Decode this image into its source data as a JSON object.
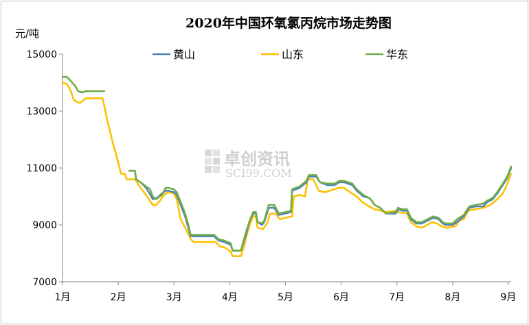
{
  "chart_data": {
    "type": "line",
    "title": "2020年中国环氧氯丙烷市场走势图",
    "ylabel": "元/吨",
    "xlabel": "",
    "ylim": [
      7000,
      15000
    ],
    "yticks": [
      7000,
      9000,
      11000,
      13000,
      15000
    ],
    "xlim": [
      1,
      9.05
    ],
    "xticks": [
      "1月",
      "2月",
      "3月",
      "4月",
      "5月",
      "6月",
      "7月",
      "8月",
      "9月"
    ],
    "legend_position": "top",
    "watermark": {
      "cn": "卓创资讯",
      "en": "SCI99.COM"
    },
    "colors": {
      "黄山": "#4f81bd",
      "山东": "#ffc000",
      "华东": "#70ad47"
    },
    "series": [
      {
        "name": "黄山",
        "segments": [
          [
            [
              2.2,
              10900
            ],
            [
              2.3,
              10900
            ],
            [
              2.32,
              10600
            ],
            [
              2.4,
              10500
            ],
            [
              2.5,
              10300
            ],
            [
              2.58,
              10050
            ],
            [
              2.62,
              9900
            ],
            [
              2.7,
              9950
            ],
            [
              2.78,
              10100
            ],
            [
              2.85,
              10200
            ],
            [
              2.9,
              10200
            ],
            [
              3.0,
              10150
            ],
            [
              3.05,
              10050
            ],
            [
              3.12,
              9700
            ],
            [
              3.2,
              9300
            ],
            [
              3.25,
              8950
            ],
            [
              3.3,
              8600
            ],
            [
              3.72,
              8600
            ],
            [
              3.8,
              8450
            ],
            [
              3.9,
              8400
            ],
            [
              4.02,
              8300
            ],
            [
              4.05,
              8100
            ],
            [
              4.2,
              8100
            ],
            [
              4.25,
              8400
            ],
            [
              4.3,
              8700
            ],
            [
              4.35,
              9100
            ],
            [
              4.42,
              9400
            ],
            [
              4.47,
              9400
            ],
            [
              4.5,
              9100
            ],
            [
              4.58,
              9000
            ],
            [
              4.62,
              9100
            ],
            [
              4.7,
              9600
            ],
            [
              4.8,
              9600
            ],
            [
              4.88,
              9350
            ],
            [
              5.0,
              9400
            ],
            [
              5.1,
              9450
            ],
            [
              5.12,
              10200
            ],
            [
              5.25,
              10300
            ],
            [
              5.38,
              10500
            ],
            [
              5.42,
              10700
            ],
            [
              5.55,
              10700
            ],
            [
              5.62,
              10500
            ],
            [
              5.75,
              10400
            ],
            [
              5.88,
              10400
            ],
            [
              5.97,
              10500
            ],
            [
              6.05,
              10500
            ],
            [
              6.2,
              10400
            ],
            [
              6.28,
              10200
            ],
            [
              6.4,
              10000
            ],
            [
              6.5,
              9950
            ],
            [
              6.55,
              9850
            ],
            [
              6.6,
              9700
            ],
            [
              6.7,
              9600
            ],
            [
              6.8,
              9400
            ],
            [
              6.98,
              9400
            ],
            [
              7.02,
              9550
            ],
            [
              7.1,
              9500
            ],
            [
              7.18,
              9500
            ],
            [
              7.25,
              9200
            ],
            [
              7.35,
              9050
            ],
            [
              7.45,
              9050
            ],
            [
              7.55,
              9150
            ],
            [
              7.65,
              9250
            ],
            [
              7.75,
              9200
            ],
            [
              7.82,
              9050
            ],
            [
              7.88,
              9000
            ],
            [
              8.0,
              9000
            ],
            [
              8.08,
              9100
            ],
            [
              8.2,
              9300
            ],
            [
              8.3,
              9600
            ],
            [
              8.42,
              9650
            ],
            [
              8.55,
              9650
            ],
            [
              8.62,
              9800
            ],
            [
              8.72,
              9900
            ],
            [
              8.8,
              10100
            ],
            [
              8.9,
              10400
            ],
            [
              8.98,
              10650
            ],
            [
              9.05,
              11000
            ]
          ]
        ]
      },
      {
        "name": "山东",
        "segments": [
          [
            [
              1.0,
              14000
            ],
            [
              1.08,
              13950
            ],
            [
              1.15,
              13700
            ],
            [
              1.2,
              13400
            ],
            [
              1.28,
              13300
            ],
            [
              1.32,
              13300
            ],
            [
              1.42,
              13450
            ],
            [
              1.72,
              13450
            ],
            [
              1.8,
              12700
            ],
            [
              1.9,
              11900
            ],
            [
              2.0,
              11200
            ],
            [
              2.05,
              10800
            ],
            [
              2.12,
              10800
            ],
            [
              2.15,
              10600
            ],
            [
              2.3,
              10600
            ],
            [
              2.4,
              10300
            ],
            [
              2.5,
              10050
            ],
            [
              2.55,
              9900
            ],
            [
              2.62,
              9700
            ],
            [
              2.68,
              9700
            ],
            [
              2.75,
              9850
            ],
            [
              2.82,
              10050
            ],
            [
              2.9,
              10150
            ],
            [
              3.0,
              10100
            ],
            [
              3.05,
              9900
            ],
            [
              3.12,
              9200
            ],
            [
              3.2,
              8900
            ],
            [
              3.3,
              8500
            ],
            [
              3.35,
              8400
            ],
            [
              3.75,
              8400
            ],
            [
              3.82,
              8250
            ],
            [
              3.92,
              8200
            ],
            [
              4.02,
              8050
            ],
            [
              4.05,
              7900
            ],
            [
              4.2,
              7900
            ],
            [
              4.25,
              8200
            ],
            [
              4.3,
              8600
            ],
            [
              4.35,
              8950
            ],
            [
              4.42,
              9300
            ],
            [
              4.47,
              9300
            ],
            [
              4.5,
              8900
            ],
            [
              4.6,
              8850
            ],
            [
              4.68,
              9100
            ],
            [
              4.72,
              9400
            ],
            [
              4.82,
              9400
            ],
            [
              4.9,
              9200
            ],
            [
              5.0,
              9250
            ],
            [
              5.12,
              9300
            ],
            [
              5.15,
              10000
            ],
            [
              5.25,
              10050
            ],
            [
              5.35,
              10000
            ],
            [
              5.4,
              10600
            ],
            [
              5.5,
              10600
            ],
            [
              5.6,
              10200
            ],
            [
              5.7,
              10150
            ],
            [
              5.8,
              10200
            ],
            [
              5.95,
              10300
            ],
            [
              6.05,
              10300
            ],
            [
              6.2,
              10100
            ],
            [
              6.28,
              10000
            ],
            [
              6.38,
              9800
            ],
            [
              6.5,
              9650
            ],
            [
              6.6,
              9550
            ],
            [
              6.72,
              9500
            ],
            [
              6.8,
              9450
            ],
            [
              6.98,
              9500
            ],
            [
              7.02,
              9450
            ],
            [
              7.18,
              9400
            ],
            [
              7.25,
              9100
            ],
            [
              7.35,
              8950
            ],
            [
              7.45,
              8900
            ],
            [
              7.55,
              9000
            ],
            [
              7.62,
              9100
            ],
            [
              7.72,
              9050
            ],
            [
              7.8,
              8950
            ],
            [
              7.9,
              8900
            ],
            [
              8.05,
              8950
            ],
            [
              8.12,
              9150
            ],
            [
              8.2,
              9200
            ],
            [
              8.28,
              9500
            ],
            [
              8.4,
              9550
            ],
            [
              8.55,
              9600
            ],
            [
              8.68,
              9700
            ],
            [
              8.8,
              9900
            ],
            [
              8.9,
              10100
            ],
            [
              8.97,
              10400
            ],
            [
              9.05,
              10800
            ]
          ]
        ]
      },
      {
        "name": "华东",
        "segments": [
          [
            [
              1.0,
              14200
            ],
            [
              1.08,
              14200
            ],
            [
              1.15,
              14050
            ],
            [
              1.22,
              13900
            ],
            [
              1.28,
              13700
            ],
            [
              1.35,
              13650
            ],
            [
              1.42,
              13700
            ],
            [
              1.75,
              13700
            ]
          ],
          [
            [
              2.2,
              10900
            ],
            [
              2.3,
              10900
            ],
            [
              2.32,
              10600
            ],
            [
              2.4,
              10500
            ],
            [
              2.5,
              10350
            ],
            [
              2.57,
              10250
            ],
            [
              2.62,
              10000
            ],
            [
              2.68,
              9900
            ],
            [
              2.78,
              10050
            ],
            [
              2.85,
              10300
            ],
            [
              2.9,
              10300
            ],
            [
              3.0,
              10250
            ],
            [
              3.05,
              10150
            ],
            [
              3.12,
              9800
            ],
            [
              3.2,
              9400
            ],
            [
              3.25,
              9050
            ],
            [
              3.3,
              8650
            ],
            [
              3.72,
              8650
            ],
            [
              3.8,
              8500
            ],
            [
              3.9,
              8450
            ],
            [
              4.02,
              8350
            ],
            [
              4.05,
              8100
            ],
            [
              4.2,
              8100
            ],
            [
              4.25,
              8450
            ],
            [
              4.3,
              8800
            ],
            [
              4.35,
              9100
            ],
            [
              4.42,
              9450
            ],
            [
              4.47,
              9450
            ],
            [
              4.5,
              9100
            ],
            [
              4.58,
              9050
            ],
            [
              4.62,
              9150
            ],
            [
              4.7,
              9700
            ],
            [
              4.8,
              9700
            ],
            [
              4.88,
              9400
            ],
            [
              5.0,
              9450
            ],
            [
              5.1,
              9500
            ],
            [
              5.12,
              10250
            ],
            [
              5.25,
              10350
            ],
            [
              5.38,
              10550
            ],
            [
              5.42,
              10750
            ],
            [
              5.55,
              10750
            ],
            [
              5.62,
              10500
            ],
            [
              5.75,
              10450
            ],
            [
              5.88,
              10450
            ],
            [
              5.97,
              10550
            ],
            [
              6.05,
              10550
            ],
            [
              6.2,
              10450
            ],
            [
              6.28,
              10250
            ],
            [
              6.4,
              10050
            ],
            [
              6.5,
              9950
            ],
            [
              6.55,
              9850
            ],
            [
              6.6,
              9700
            ],
            [
              6.7,
              9600
            ],
            [
              6.8,
              9400
            ],
            [
              6.98,
              9450
            ],
            [
              7.02,
              9600
            ],
            [
              7.1,
              9550
            ],
            [
              7.18,
              9550
            ],
            [
              7.25,
              9250
            ],
            [
              7.35,
              9100
            ],
            [
              7.45,
              9100
            ],
            [
              7.55,
              9200
            ],
            [
              7.65,
              9300
            ],
            [
              7.75,
              9250
            ],
            [
              7.82,
              9100
            ],
            [
              7.88,
              9050
            ],
            [
              8.0,
              9050
            ],
            [
              8.08,
              9200
            ],
            [
              8.2,
              9350
            ],
            [
              8.3,
              9650
            ],
            [
              8.42,
              9700
            ],
            [
              8.55,
              9750
            ],
            [
              8.62,
              9850
            ],
            [
              8.72,
              9950
            ],
            [
              8.8,
              10150
            ],
            [
              8.9,
              10450
            ],
            [
              8.98,
              10700
            ],
            [
              9.05,
              11050
            ]
          ]
        ]
      }
    ]
  }
}
